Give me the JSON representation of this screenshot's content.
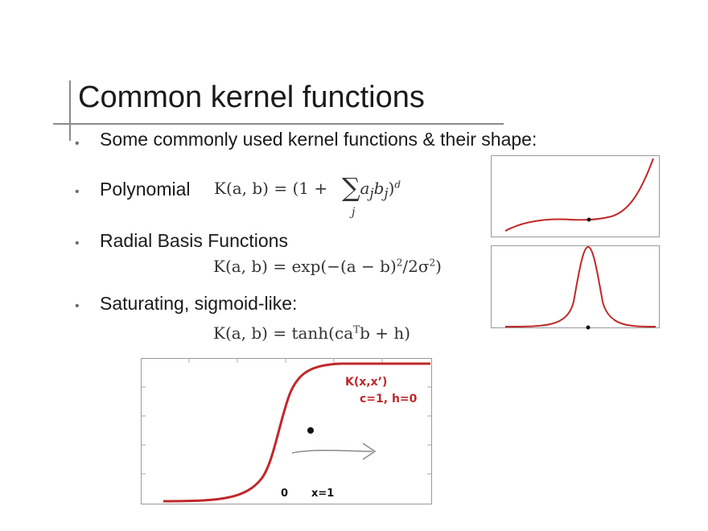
{
  "slide": {
    "title": "Common kernel functions",
    "bullets": [
      {
        "text": "Some commonly used kernel functions & their shape:"
      },
      {
        "text": "Polynomial"
      },
      {
        "text": "Radial Basis Functions"
      },
      {
        "text": "Saturating, sigmoid-like:"
      }
    ],
    "formulas": {
      "poly_lhs": "K(a, b) = (1 + ",
      "poly_terms": "a",
      "poly_sub1": "j",
      "poly_b": "b",
      "poly_sub2": "j",
      "poly_close": ")",
      "poly_exp": "d",
      "poly_index": "j",
      "rbf": "K(a, b) = exp(−(a − b)",
      "rbf_exp": "2",
      "rbf_rest": "/2σ",
      "rbf_exp2": "2",
      "rbf_close": ")",
      "sig_lhs": "K(a, b) = tanh(ca",
      "sig_exp": "T",
      "sig_rest": "b + h)"
    },
    "annotations": {
      "kernel_label": "K(x,x’)",
      "params_label": "c=1, h=0",
      "zero_label": "0",
      "x1_label": "x=1"
    },
    "colors": {
      "curve": "#c0282a",
      "axis": "#999999",
      "arrow": "#8a8a8a",
      "text": "#1a1a1a"
    }
  }
}
